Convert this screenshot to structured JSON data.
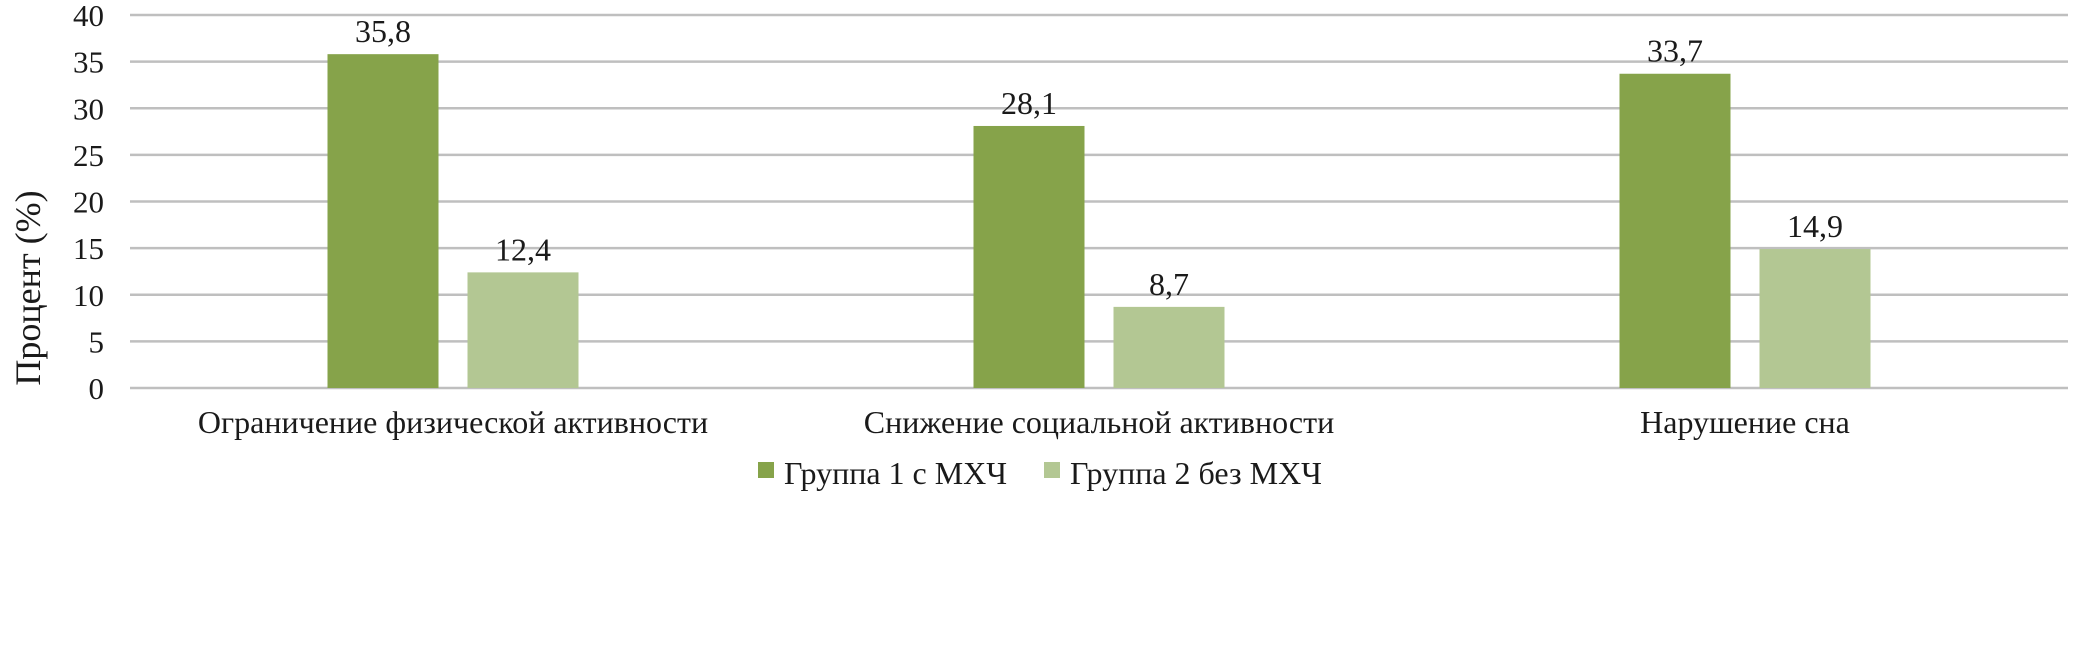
{
  "chart_data": {
    "type": "bar",
    "title": "",
    "xlabel": "",
    "ylabel": "Процент (%)",
    "categories": [
      "Ограничение физической активности",
      "Снижение социальной активности",
      "Нарушение сна"
    ],
    "series": [
      {
        "name": "Группа 1 с МХЧ",
        "values": [
          35.8,
          28.1,
          33.7
        ],
        "labels": [
          "35,8",
          "28,1",
          "33,7"
        ],
        "color": "#86a34a"
      },
      {
        "name": "Группа 2 без МХЧ",
        "values": [
          12.4,
          8.7,
          14.9
        ],
        "labels": [
          "12,4",
          "8,7",
          "14,9"
        ],
        "color": "#b3c793"
      }
    ],
    "ylim": [
      0,
      40
    ],
    "yticks": [
      0,
      5,
      10,
      15,
      20,
      25,
      30,
      35,
      40
    ],
    "grid": true,
    "legend_position": "bottom"
  }
}
